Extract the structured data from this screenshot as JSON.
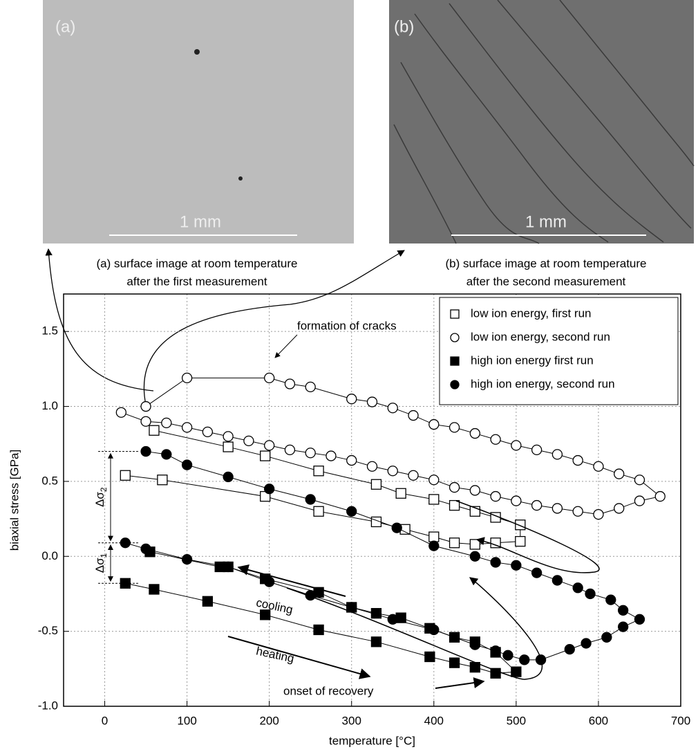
{
  "images": [
    {
      "label": "(a)",
      "scale": "1 mm",
      "caption": [
        "(a) surface image at room temperature",
        "after the first measurement"
      ]
    },
    {
      "label": "(b)",
      "scale": "1 mm",
      "caption": [
        "(b) surface image at room temperature",
        "after the second measurement"
      ]
    }
  ],
  "chart_data": {
    "type": "scatter",
    "xlabel": "temperature [°C]",
    "ylabel": "biaxial stress [GPa]",
    "xlim": [
      -50,
      700
    ],
    "ylim": [
      -1.0,
      1.75
    ],
    "xticks": [
      0,
      100,
      200,
      300,
      400,
      500,
      600,
      700
    ],
    "yticks": [
      {
        "value": -1.0,
        "label": "-1.0"
      },
      -0.5,
      {
        "value": 0.0,
        "label": "0.0"
      },
      0.5,
      {
        "value": 1.0,
        "label": "1.0"
      },
      1.5
    ],
    "grid": true,
    "legend": "upper right",
    "series": [
      {
        "name": "low ion energy, first run",
        "color": "#000000",
        "marker": "square",
        "filled": false,
        "x": [
          25,
          70,
          195,
          260,
          330,
          365,
          400,
          425,
          450,
          475,
          505,
          505,
          475,
          450,
          425,
          400,
          360,
          330,
          260,
          195,
          150,
          60
        ],
        "values": [
          0.54,
          0.51,
          0.4,
          0.3,
          0.23,
          0.18,
          0.13,
          0.09,
          0.08,
          0.09,
          0.1,
          0.21,
          0.26,
          0.3,
          0.34,
          0.38,
          0.42,
          0.48,
          0.57,
          0.67,
          0.73,
          0.84
        ]
      },
      {
        "name": "low ion energy, second run",
        "color": "#000000",
        "marker": "circle",
        "filled": false,
        "x": [
          20,
          50,
          75,
          100,
          125,
          150,
          175,
          200,
          225,
          250,
          275,
          300,
          325,
          350,
          375,
          400,
          425,
          450,
          475,
          500,
          525,
          550,
          575,
          600,
          625,
          650,
          675,
          650,
          625,
          600,
          575,
          550,
          525,
          500,
          475,
          450,
          425,
          400,
          375,
          350,
          325,
          300,
          250,
          225,
          200,
          100,
          50
        ],
        "values": [
          0.96,
          0.9,
          0.89,
          0.86,
          0.83,
          0.8,
          0.77,
          0.74,
          0.71,
          0.69,
          0.67,
          0.64,
          0.6,
          0.57,
          0.54,
          0.51,
          0.46,
          0.44,
          0.4,
          0.37,
          0.34,
          0.32,
          0.3,
          0.28,
          0.32,
          0.37,
          0.4,
          0.51,
          0.55,
          0.6,
          0.64,
          0.68,
          0.71,
          0.74,
          0.78,
          0.82,
          0.86,
          0.88,
          0.94,
          0.99,
          1.03,
          1.05,
          1.13,
          1.15,
          1.19,
          1.19,
          1.0
        ]
      },
      {
        "name": "high ion energy  first run",
        "color": "#000000",
        "marker": "square",
        "filled": true,
        "x": [
          25,
          60,
          125,
          195,
          260,
          330,
          395,
          425,
          450,
          475,
          500,
          475,
          450,
          425,
          395,
          360,
          330,
          300,
          260,
          195,
          150,
          140,
          55
        ],
        "values": [
          -0.18,
          -0.22,
          -0.3,
          -0.39,
          -0.49,
          -0.57,
          -0.67,
          -0.71,
          -0.74,
          -0.78,
          -0.77,
          -0.64,
          -0.57,
          -0.54,
          -0.48,
          -0.41,
          -0.38,
          -0.34,
          -0.24,
          -0.15,
          -0.07,
          -0.07,
          0.03
        ]
      },
      {
        "name": "high ion energy, second run",
        "color": "#000000",
        "marker": "circle",
        "filled": true,
        "x": [
          25,
          50,
          100,
          150,
          200,
          250,
          300,
          350,
          400,
          450,
          475,
          490,
          510,
          530,
          565,
          585,
          610,
          630,
          650,
          630,
          615,
          590,
          575,
          550,
          525,
          500,
          475,
          450,
          400,
          355,
          300,
          250,
          200,
          150,
          100,
          75,
          50
        ],
        "values": [
          0.09,
          0.05,
          -0.02,
          -0.07,
          -0.17,
          -0.26,
          -0.34,
          -0.42,
          -0.49,
          -0.59,
          -0.63,
          -0.66,
          -0.69,
          -0.69,
          -0.62,
          -0.58,
          -0.54,
          -0.47,
          -0.42,
          -0.36,
          -0.29,
          -0.25,
          -0.21,
          -0.16,
          -0.11,
          -0.06,
          -0.04,
          0.0,
          0.07,
          0.19,
          0.3,
          0.38,
          0.45,
          0.53,
          0.61,
          0.68,
          0.7
        ]
      }
    ],
    "annotations": [
      {
        "text": "formation of cracks"
      },
      {
        "text": "cooling"
      },
      {
        "text": "heating"
      },
      {
        "text": "onset of recovery"
      },
      {
        "text": "Δσ",
        "sub": "2"
      },
      {
        "text": "Δσ",
        "sub": "1"
      }
    ]
  }
}
